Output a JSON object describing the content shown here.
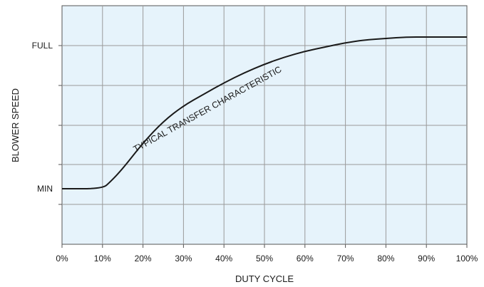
{
  "chart_data": {
    "type": "line",
    "title": "",
    "xlabel": "DUTY CYCLE",
    "ylabel": "BLOWER SPEED",
    "x_unit": "%",
    "xlim": [
      0,
      100
    ],
    "x_ticks": [
      0,
      10,
      20,
      30,
      40,
      50,
      60,
      70,
      80,
      90,
      100
    ],
    "x_tick_labels": [
      "0%",
      "10%",
      "20%",
      "30%",
      "40%",
      "50%",
      "60%",
      "70%",
      "80%",
      "90%",
      "100%"
    ],
    "ylim": [
      -0.4,
      1.0
    ],
    "y_ticks": [
      -0.3,
      0.0,
      0.33,
      0.67,
      1.0
    ],
    "y_tick_labels": [
      {
        "value": 0.0,
        "label": "MIN"
      },
      {
        "value": 1.0,
        "label": "FULL"
      }
    ],
    "grid": true,
    "background_color": "#e6f3fb",
    "grid_color": "#9a9a9a",
    "line_color": "#1a1a1a",
    "annotation": "TYPICAL TRANSFER CHARACTERISTIC",
    "series": [
      {
        "x": [
          0,
          10,
          12,
          15,
          20,
          25,
          30,
          35,
          40,
          45,
          50,
          55,
          60,
          65,
          70,
          75,
          80,
          85,
          90,
          100
        ],
        "y": [
          0,
          0,
          0.05,
          0.14,
          0.32,
          0.47,
          0.58,
          0.66,
          0.74,
          0.81,
          0.87,
          0.92,
          0.96,
          0.99,
          1.02,
          1.04,
          1.05,
          1.06,
          1.06,
          1.06
        ]
      }
    ]
  }
}
